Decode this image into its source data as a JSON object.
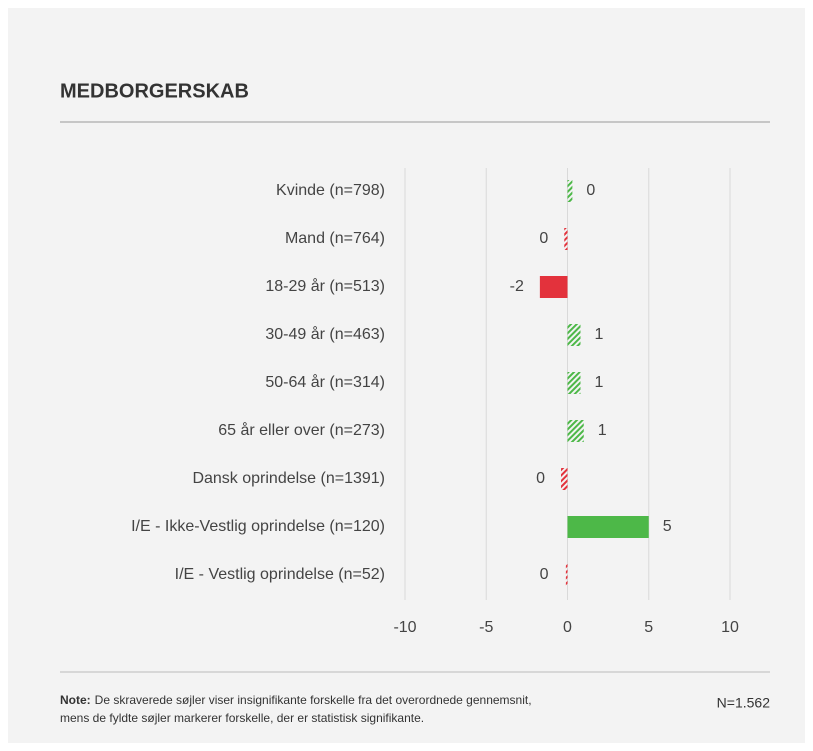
{
  "chart_data": {
    "type": "hbar",
    "title": "MEDBORGERSKAB",
    "categories": [
      "Kvinde (n=798)",
      "Mand (n=764)",
      "18-29 år (n=513)",
      "30-49 år (n=463)",
      "50-64 år (n=314)",
      "65 år eller over (n=273)",
      "Dansk oprindelse (n=1391)",
      "I/E - Ikke-Vestlig oprindelse (n=120)",
      "I/E - Vestlig oprindelse (n=52)"
    ],
    "values": [
      0.3,
      -0.2,
      -1.7,
      0.8,
      0.8,
      1.0,
      -0.4,
      5.0,
      -0.1
    ],
    "value_labels": [
      "0",
      "0",
      "-2",
      "1",
      "1",
      "1",
      "0",
      "5",
      "0"
    ],
    "significant": [
      false,
      false,
      true,
      false,
      false,
      false,
      false,
      true,
      false
    ],
    "positive_color": "#4db848",
    "negative_color": "#e3323c",
    "xlim": [
      -10,
      10
    ],
    "xticks": [
      -10,
      -5,
      0,
      5,
      10
    ],
    "grid": true,
    "note_label": "Note:",
    "note_lines": [
      "De skraverede søjler viser insignifikante forskelle fra det overordnede gennemsnit,",
      "mens de fyldte søjler markerer forskelle, der er statistisk signifikante."
    ],
    "n_label": "N=1.562"
  }
}
